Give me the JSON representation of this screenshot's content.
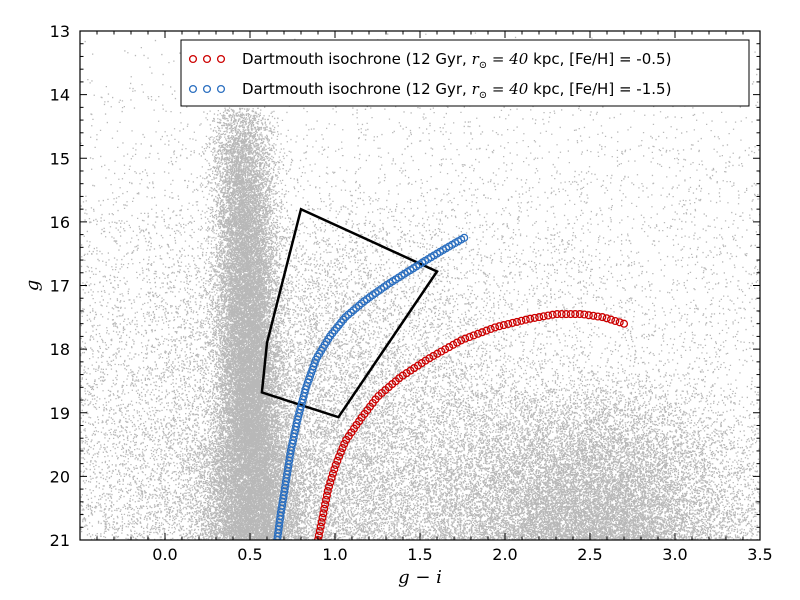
{
  "chart_data": {
    "type": "scatter",
    "title": "",
    "xlabel": "g − i",
    "ylabel": "g",
    "xlim": [
      -0.5,
      3.5
    ],
    "ylim": [
      21,
      13
    ],
    "y_inverted": true,
    "xticks": [
      0.0,
      0.5,
      1.0,
      1.5,
      2.0,
      2.5,
      3.0,
      3.5
    ],
    "xtick_labels": [
      "0.0",
      "0.5",
      "1.0",
      "1.5",
      "2.0",
      "2.5",
      "3.0",
      "3.5"
    ],
    "yticks": [
      13,
      14,
      15,
      16,
      17,
      18,
      19,
      20,
      21
    ],
    "ytick_labels": [
      "13",
      "14",
      "15",
      "16",
      "17",
      "18",
      "19",
      "20",
      "21"
    ],
    "grid": false,
    "legend_position": "top-right",
    "background_points": {
      "description": "dense cloud of faint black stellar points",
      "color": "#000000",
      "features": [
        {
          "x_center": 0.45,
          "x_width": 0.13,
          "y_range": [
            14.2,
            21
          ],
          "weight": "heavy"
        },
        {
          "x_center": 2.5,
          "x_width": 0.55,
          "y_range": [
            18.5,
            21
          ],
          "weight": "medium"
        },
        {
          "x_range": [
            -0.5,
            3.5
          ],
          "y_range": [
            13,
            21
          ],
          "weight": "sparse field"
        }
      ]
    },
    "selection_box": {
      "color": "#000000",
      "vertices": [
        [
          0.8,
          15.8
        ],
        [
          1.6,
          16.78
        ],
        [
          1.02,
          19.07
        ],
        [
          0.57,
          18.68
        ],
        [
          0.6,
          17.9
        ]
      ]
    },
    "series": [
      {
        "name": "Dartmouth isochrone (12 Gyr, r⊙ = 40 kpc, [Fe/H] = -0.5)",
        "legend_label_parts": [
          "Dartmouth isochrone (12 Gyr, ",
          "r",
          "⊙",
          " = 40",
          " kpc, [Fe/H] = -0.5)"
        ],
        "color": "#cc0000",
        "marker": "open-circle",
        "points": [
          [
            0.9,
            21.0
          ],
          [
            0.93,
            20.6
          ],
          [
            0.96,
            20.2
          ],
          [
            1.0,
            19.85
          ],
          [
            1.06,
            19.45
          ],
          [
            1.15,
            19.1
          ],
          [
            1.25,
            18.75
          ],
          [
            1.38,
            18.45
          ],
          [
            1.55,
            18.15
          ],
          [
            1.75,
            17.85
          ],
          [
            1.95,
            17.65
          ],
          [
            2.15,
            17.52
          ],
          [
            2.3,
            17.45
          ],
          [
            2.45,
            17.45
          ],
          [
            2.58,
            17.5
          ],
          [
            2.7,
            17.6
          ]
        ]
      },
      {
        "name": "Dartmouth isochrone (12 Gyr, r⊙ = 40 kpc, [Fe/H] = -1.5)",
        "legend_label_parts": [
          "Dartmouth isochrone (12 Gyr, ",
          "r",
          "⊙",
          " = 40",
          " kpc, [Fe/H] = -1.5)"
        ],
        "color": "#2a6ebf",
        "marker": "open-circle",
        "points": [
          [
            0.66,
            21.0
          ],
          [
            0.68,
            20.6
          ],
          [
            0.71,
            20.1
          ],
          [
            0.74,
            19.6
          ],
          [
            0.78,
            19.1
          ],
          [
            0.83,
            18.6
          ],
          [
            0.89,
            18.15
          ],
          [
            0.97,
            17.8
          ],
          [
            1.06,
            17.5
          ],
          [
            1.17,
            17.25
          ],
          [
            1.3,
            17.0
          ],
          [
            1.43,
            16.78
          ],
          [
            1.55,
            16.58
          ],
          [
            1.65,
            16.42
          ],
          [
            1.76,
            16.25
          ]
        ]
      }
    ]
  }
}
